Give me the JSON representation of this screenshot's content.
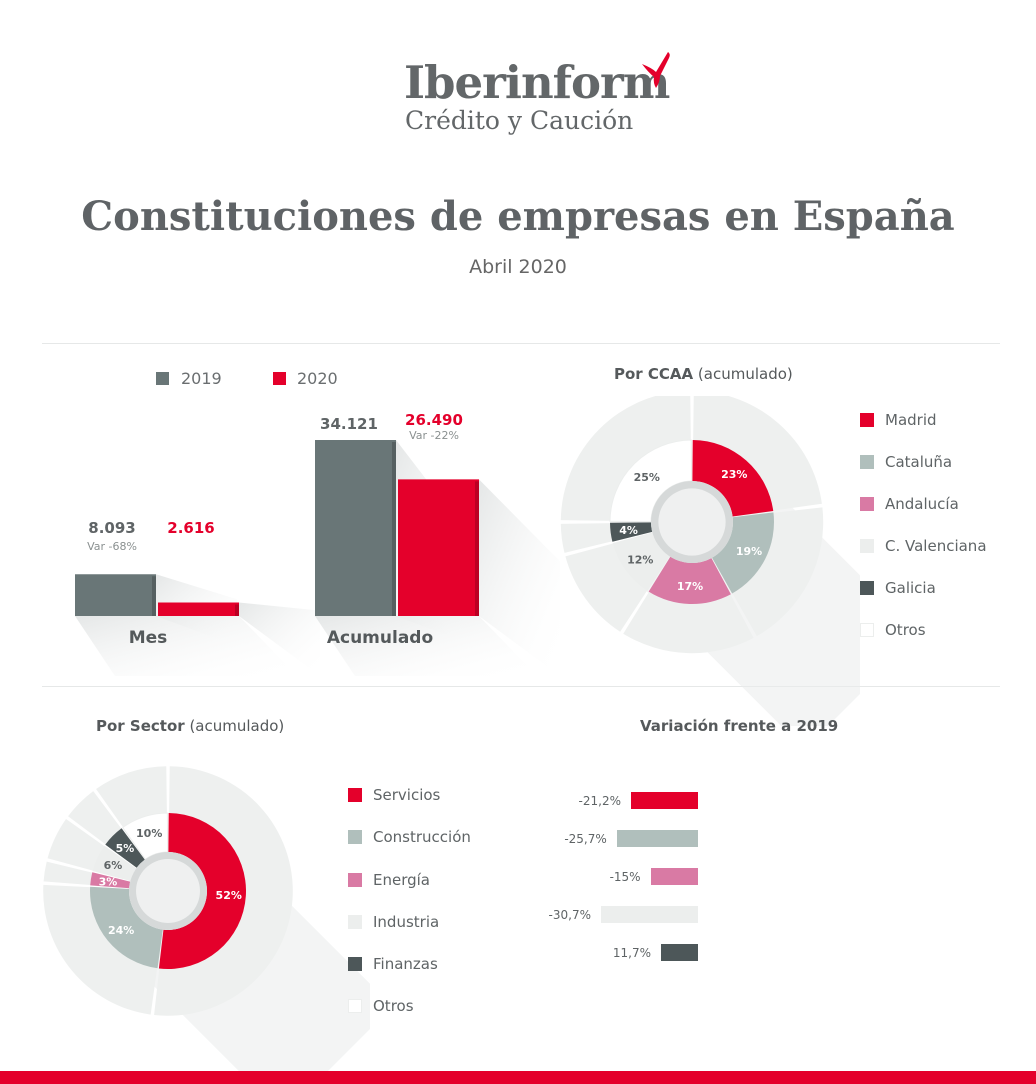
{
  "header": {
    "logo_name": "Iberinform",
    "logo_sub": "Crédito y Caución",
    "title": "Constituciones de empresas en España",
    "subtitle": "Abril 2020"
  },
  "colors": {
    "grey_dark": "#697677",
    "red": "#e4002b",
    "sage": "#b0bfbc",
    "pink": "#d97aa4",
    "light": "#eceeed",
    "dark": "#4d5759",
    "white": "#ffffff"
  },
  "bars": {
    "legend": [
      {
        "label": "2019",
        "color": "#697677"
      },
      {
        "label": "2020",
        "color": "#e4002b"
      }
    ],
    "groups": [
      {
        "category": "Mes",
        "v2019": "8.093",
        "v2020": "2.616",
        "var": "Var -68%"
      },
      {
        "category": "Acumulado",
        "v2019": "34.121",
        "v2020": "26.490",
        "var": "Var -22%"
      }
    ]
  },
  "ccaa": {
    "title_bold": "Por CCAA",
    "title_rest": " (acumulado)",
    "legend": [
      {
        "label": "Madrid",
        "color": "#e4002b"
      },
      {
        "label": "Cataluña",
        "color": "#b0bfbc"
      },
      {
        "label": "Andalucía",
        "color": "#d97aa4"
      },
      {
        "label": "C. Valenciana",
        "color": "#eceeed"
      },
      {
        "label": "Galicia",
        "color": "#4d5759"
      },
      {
        "label": "Otros",
        "color": "#ffffff"
      }
    ]
  },
  "sector": {
    "title_bold": "Por Sector",
    "title_rest": " (acumulado)",
    "legend": [
      {
        "label": "Servicios",
        "color": "#e4002b"
      },
      {
        "label": "Construcción",
        "color": "#b0bfbc"
      },
      {
        "label": "Energía",
        "color": "#d97aa4"
      },
      {
        "label": "Industria",
        "color": "#eceeed"
      },
      {
        "label": "Finanzas",
        "color": "#4d5759"
      },
      {
        "label": "Otros",
        "color": "#ffffff"
      }
    ]
  },
  "variation": {
    "title": "Variación frente a 2019",
    "rows": [
      {
        "label": "-21,2%",
        "value": -21.2,
        "color": "#e4002b"
      },
      {
        "label": "-25,7%",
        "value": -25.7,
        "color": "#b0bfbc"
      },
      {
        "label": "-15%",
        "value": -15,
        "color": "#d97aa4"
      },
      {
        "label": "-30,7%",
        "value": -30.7,
        "color": "#eceeed"
      },
      {
        "label": "11,7%",
        "value": 11.7,
        "color": "#4d5759"
      }
    ]
  },
  "chart_data": [
    {
      "type": "bar",
      "categories": [
        "Mes",
        "Acumulado"
      ],
      "series": [
        {
          "name": "2019",
          "values": [
            8093,
            34121
          ]
        },
        {
          "name": "2020",
          "values": [
            2616,
            26490
          ]
        }
      ],
      "annotations": [
        "Var -68%",
        "Var -22%"
      ]
    },
    {
      "type": "pie",
      "title": "Por CCAA (acumulado)",
      "labels": [
        "Madrid",
        "Cataluña",
        "Andalucía",
        "C. Valenciana",
        "Galicia",
        "Otros"
      ],
      "values": [
        23,
        19,
        17,
        12,
        4,
        25
      ],
      "value_labels": [
        "23%",
        "19%",
        "17%",
        "12%",
        "4%",
        "25%"
      ]
    },
    {
      "type": "pie",
      "title": "Por Sector (acumulado)",
      "labels": [
        "Servicios",
        "Construcción",
        "Energía",
        "Industria",
        "Finanzas",
        "Otros"
      ],
      "values": [
        52,
        24,
        3,
        6,
        5,
        10
      ],
      "value_labels": [
        "52%",
        "24%",
        "3%",
        "6%",
        "5%",
        "10%"
      ]
    },
    {
      "type": "bar",
      "title": "Variación frente a 2019",
      "orientation": "horizontal",
      "categories": [
        "Servicios",
        "Construcción",
        "Energía",
        "Industria",
        "Finanzas"
      ],
      "values": [
        -21.2,
        -25.7,
        -15,
        -30.7,
        11.7
      ]
    }
  ]
}
